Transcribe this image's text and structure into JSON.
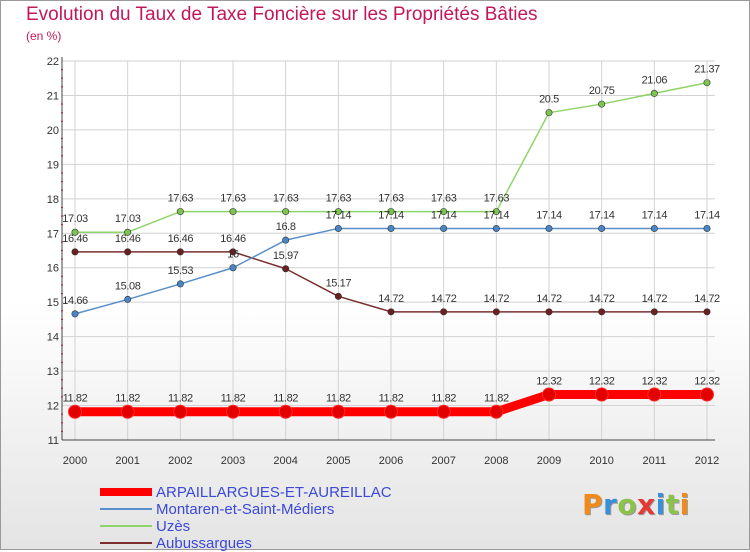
{
  "title": "Evolution du Taux de Taxe Foncière sur les Propriétés Bâties",
  "unit": "(en %)",
  "logo": {
    "text": "Proxiti",
    "colors": [
      "#f08a1c",
      "#3a8fd9",
      "#8bc34a",
      "#e53935",
      "#3a8fd9",
      "#8bc34a",
      "#f08a1c"
    ]
  },
  "chart_data": {
    "type": "line",
    "title": "Evolution du Taux de Taxe Foncière sur les Propriétés Bâties",
    "ylabel": "(en %)",
    "xlabel": "",
    "categories": [
      "2000",
      "2001",
      "2002",
      "2003",
      "2004",
      "2005",
      "2006",
      "2007",
      "2008",
      "2009",
      "2010",
      "2011",
      "2012"
    ],
    "y_ticks": [
      "11",
      "12",
      "13",
      "14",
      "15",
      "16",
      "17",
      "18",
      "19",
      "20",
      "21",
      "22"
    ],
    "ylim": [
      11,
      22
    ],
    "grid": true,
    "legend_position": "bottom",
    "series": [
      {
        "name": "ARPAILLARGUES-ET-AUREILLAC",
        "color": "#ff0000",
        "marker_color": "#e30000",
        "emphasis": true,
        "values": [
          11.82,
          11.82,
          11.82,
          11.82,
          11.82,
          11.82,
          11.82,
          11.82,
          11.82,
          12.32,
          12.32,
          12.32,
          12.32
        ],
        "labels": [
          "11.82",
          "11.82",
          "11.82",
          "11.82",
          "11.82",
          "11.82",
          "11.82",
          "11.82",
          "11.82",
          "12.32",
          "12.32",
          "12.32",
          "12.32"
        ]
      },
      {
        "name": "Montaren-et-Saint-Médiers",
        "color": "#5a8ec9",
        "marker_color": "#4a86c5",
        "emphasis": false,
        "values": [
          14.66,
          15.08,
          15.53,
          16,
          16.8,
          17.14,
          17.14,
          17.14,
          17.14,
          17.14,
          17.14,
          17.14,
          17.14
        ],
        "labels": [
          "14.66",
          "15.08",
          "15.53",
          "16",
          "16.8",
          "17.14",
          "17.14",
          "17.14",
          "17.14",
          "17.14",
          "17.14",
          "17.14",
          "17.14"
        ]
      },
      {
        "name": "Uzès",
        "color": "#8fd46a",
        "marker_color": "#7cc44f",
        "emphasis": false,
        "values": [
          17.03,
          17.03,
          17.63,
          17.63,
          17.63,
          17.63,
          17.63,
          17.63,
          17.63,
          20.5,
          20.75,
          21.06,
          21.37
        ],
        "labels": [
          "17.03",
          "17.03",
          "17.63",
          "17.63",
          "17.63",
          "17.63",
          "17.63",
          "17.63",
          "17.63",
          "20.5",
          "20.75",
          "21.06",
          "21.37"
        ]
      },
      {
        "name": "Aubussargues",
        "color": "#7a2e2e",
        "marker_color": "#6b1f1f",
        "emphasis": false,
        "values": [
          16.46,
          16.46,
          16.46,
          16.46,
          15.97,
          15.17,
          14.72,
          14.72,
          14.72,
          14.72,
          14.72,
          14.72,
          14.72
        ],
        "labels": [
          "16.46",
          "16.46",
          "16.46",
          "16.46",
          "15.97",
          "15.17",
          "14.72",
          "14.72",
          "14.72",
          "14.72",
          "14.72",
          "14.72",
          "14.72"
        ]
      }
    ]
  }
}
